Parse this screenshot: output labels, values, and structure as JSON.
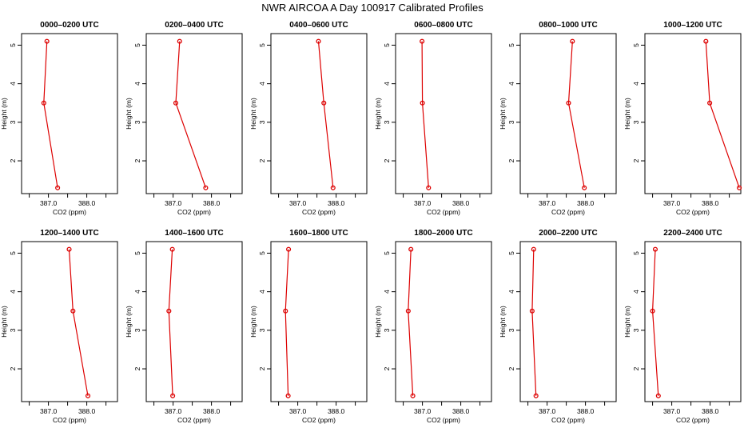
{
  "title": "NWR AIRCOA A  Day 100917  Calibrated Profiles",
  "colors": {
    "series": "#dd0000",
    "axis": "#000000",
    "background": "#ffffff"
  },
  "chart_data": {
    "type": "line",
    "xlabel": "CO2 (ppm)",
    "ylabel": "Height (m)",
    "xlim": [
      386.3,
      388.8
    ],
    "ylim": [
      1.15,
      5.3
    ],
    "xticks": [
      "387.0",
      "388.0"
    ],
    "xtick_values": [
      387.0,
      388.0
    ],
    "yticks": [
      "2",
      "3",
      "4",
      "5"
    ],
    "ytick_values": [
      2,
      3,
      4,
      5
    ],
    "panels": [
      {
        "title": "0000–0200 UTC",
        "points": [
          [
            387.24,
            1.3
          ],
          [
            386.88,
            3.5
          ],
          [
            386.96,
            5.1
          ]
        ]
      },
      {
        "title": "0200–0400 UTC",
        "points": [
          [
            387.85,
            1.3
          ],
          [
            387.07,
            3.5
          ],
          [
            387.17,
            5.1
          ]
        ]
      },
      {
        "title": "0400–0600 UTC",
        "points": [
          [
            387.92,
            1.3
          ],
          [
            387.68,
            3.5
          ],
          [
            387.54,
            5.1
          ]
        ]
      },
      {
        "title": "0600–0800 UTC",
        "points": [
          [
            387.16,
            1.3
          ],
          [
            387.0,
            3.5
          ],
          [
            386.99,
            5.1
          ]
        ]
      },
      {
        "title": "0800–1000 UTC",
        "points": [
          [
            387.97,
            1.3
          ],
          [
            387.56,
            3.5
          ],
          [
            387.66,
            5.1
          ]
        ]
      },
      {
        "title": "1000–1200 UTC",
        "points": [
          [
            388.76,
            1.3
          ],
          [
            387.99,
            3.5
          ],
          [
            387.89,
            5.1
          ]
        ]
      },
      {
        "title": "1200–1400 UTC",
        "points": [
          [
            388.03,
            1.3
          ],
          [
            387.64,
            3.5
          ],
          [
            387.54,
            5.1
          ]
        ]
      },
      {
        "title": "1400–1600 UTC",
        "points": [
          [
            386.99,
            1.3
          ],
          [
            386.89,
            3.5
          ],
          [
            386.98,
            5.1
          ]
        ]
      },
      {
        "title": "1600–1800 UTC",
        "points": [
          [
            386.75,
            1.3
          ],
          [
            386.68,
            3.5
          ],
          [
            386.76,
            5.1
          ]
        ]
      },
      {
        "title": "1800–2000 UTC",
        "points": [
          [
            386.75,
            1.3
          ],
          [
            386.63,
            3.5
          ],
          [
            386.7,
            5.1
          ]
        ]
      },
      {
        "title": "2000–2200 UTC",
        "points": [
          [
            386.71,
            1.3
          ],
          [
            386.61,
            3.5
          ],
          [
            386.65,
            5.1
          ]
        ]
      },
      {
        "title": "2200–2400 UTC",
        "points": [
          [
            386.65,
            1.3
          ],
          [
            386.5,
            3.5
          ],
          [
            386.57,
            5.1
          ]
        ]
      }
    ]
  }
}
